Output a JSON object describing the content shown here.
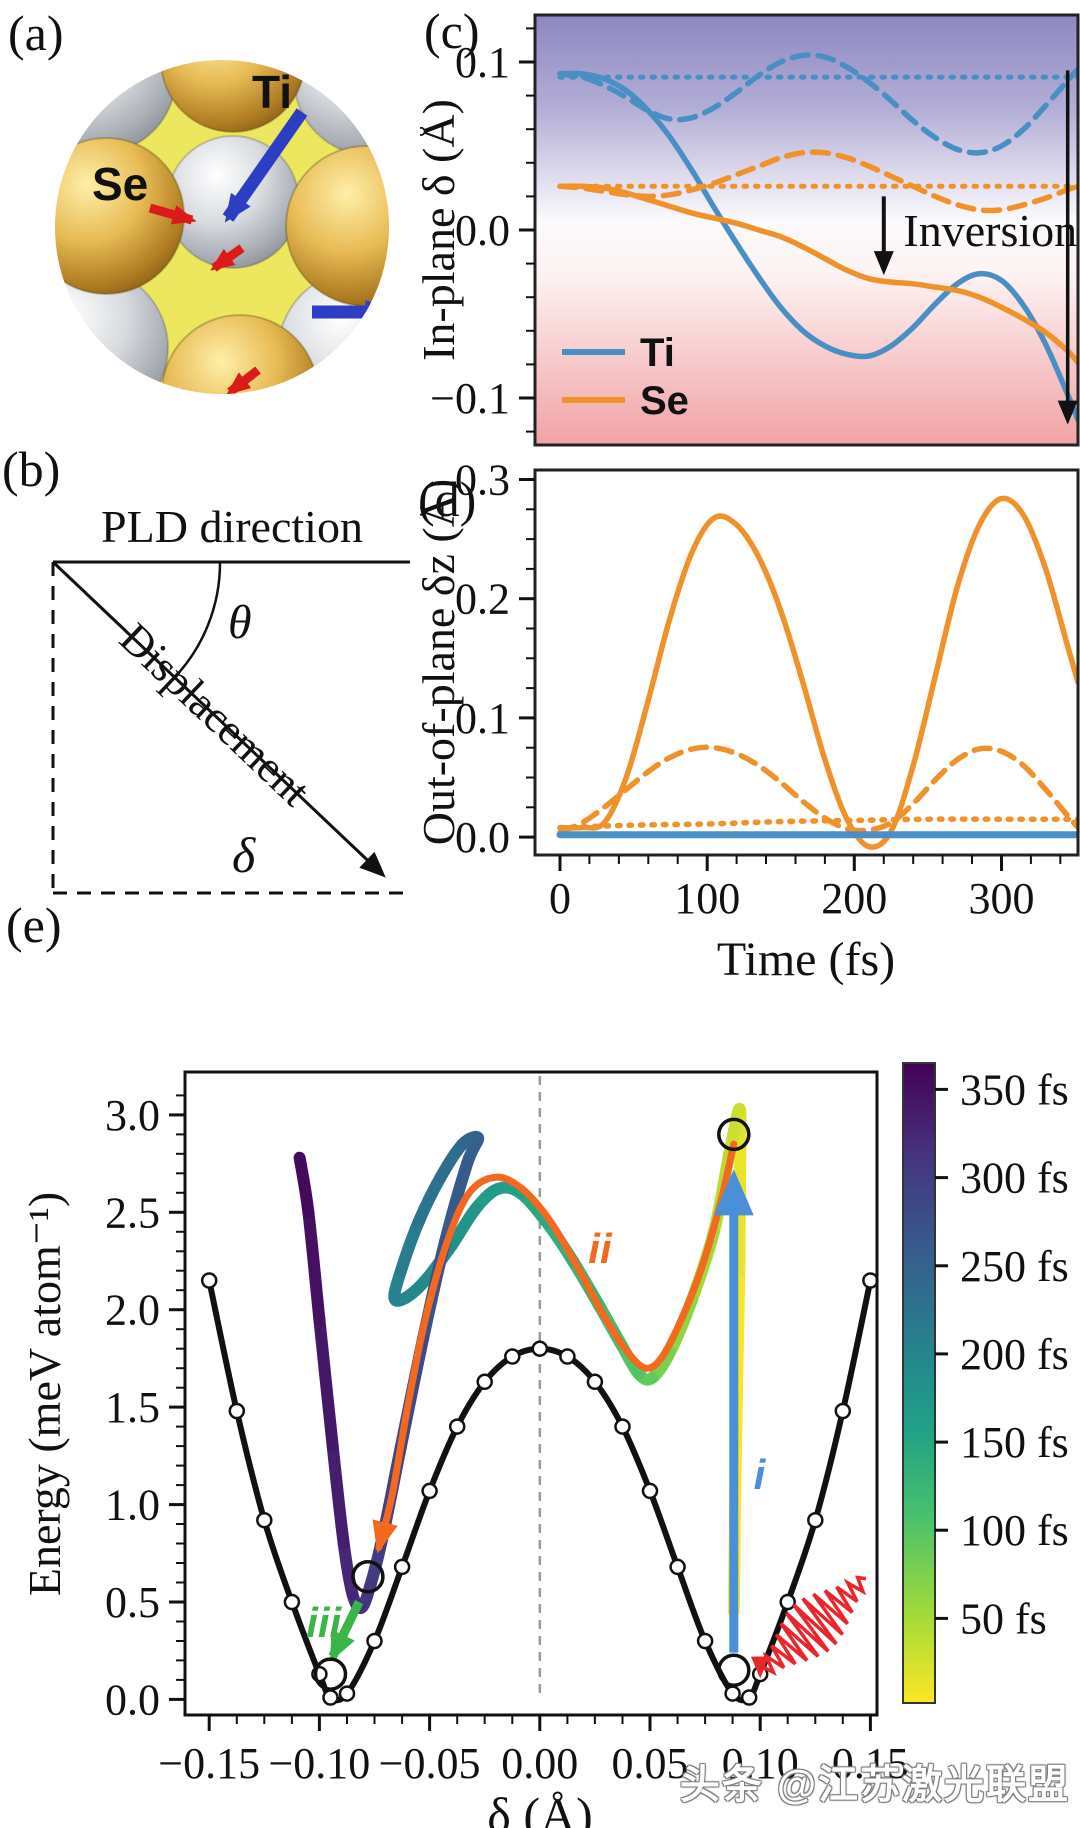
{
  "figure": {
    "panel_labels": {
      "a": "(a)",
      "b": "(b)",
      "c": "(c)",
      "d": "(d)",
      "e": "(e)"
    },
    "watermark": "头条 @江苏激光联盟"
  },
  "panel_a": {
    "atom_labels": {
      "ti": "Ti",
      "se": "Se"
    },
    "colors": {
      "se_sphere": "#c99b3f",
      "surface_sphere": "#b9bcc2",
      "background": "#ece75f",
      "displacement_arrow": "#dd1a1a",
      "direction_arrow": "#2c3fc4"
    }
  },
  "panel_b": {
    "top_label": "PLD direction",
    "angle_label": "θ",
    "vector_label": "Displacement",
    "delta_label": "δ"
  },
  "chart_data": [
    {
      "id": "c",
      "type": "line",
      "xlabel": "",
      "ylabel": "In-plane δ (Å)",
      "xlim": [
        -17,
        352
      ],
      "ylim": [
        -0.128,
        0.128
      ],
      "yticks": [
        0.1,
        0.0,
        -0.1
      ],
      "ytick_labels": [
        "0.1",
        "0.0",
        "−0.1"
      ],
      "background_gradient": [
        "#8d87c2",
        "#ffffff",
        "#f1a2a5"
      ],
      "legend": {
        "position": "lower-left",
        "entries": [
          {
            "label": "Ti",
            "color": "#4a8fc4"
          },
          {
            "label": "Se",
            "color": "#f0922b"
          }
        ]
      },
      "annotations": {
        "inversion_text": {
          "text": "Inversion",
          "t": 232,
          "v": 0.0
        },
        "inversion_arrow": {
          "t": 220,
          "from": 0.02,
          "to": -0.024
        },
        "full_arrow": {
          "t": 345,
          "from": 0.095,
          "to": -0.113
        }
      },
      "series": [
        {
          "name": "Ti-solid",
          "style": "solid",
          "color": "#4a8fc4",
          "x": [
            0,
            15,
            30,
            45,
            60,
            75,
            90,
            105,
            120,
            135,
            150,
            165,
            180,
            195,
            210,
            225,
            240,
            255,
            270,
            285,
            300,
            315,
            330,
            345,
            352
          ],
          "y": [
            0.093,
            0.093,
            0.09,
            0.083,
            0.071,
            0.055,
            0.035,
            0.013,
            -0.008,
            -0.028,
            -0.046,
            -0.06,
            -0.069,
            -0.074,
            -0.075,
            -0.069,
            -0.058,
            -0.044,
            -0.032,
            -0.026,
            -0.03,
            -0.045,
            -0.068,
            -0.098,
            -0.113
          ]
        },
        {
          "name": "Se-solid",
          "style": "solid",
          "color": "#f0922b",
          "x": [
            0,
            15,
            30,
            45,
            60,
            75,
            90,
            105,
            120,
            135,
            150,
            165,
            180,
            195,
            210,
            225,
            240,
            255,
            270,
            285,
            300,
            315,
            330,
            345,
            352
          ],
          "y": [
            0.026,
            0.026,
            0.025,
            0.022,
            0.018,
            0.014,
            0.01,
            0.007,
            0.004,
            0.0,
            -0.004,
            -0.01,
            -0.017,
            -0.024,
            -0.029,
            -0.031,
            -0.032,
            -0.034,
            -0.036,
            -0.04,
            -0.046,
            -0.053,
            -0.061,
            -0.072,
            -0.079
          ]
        },
        {
          "name": "Ti-dashed",
          "style": "dashed",
          "color": "#4a8fc4",
          "x": [
            0,
            15,
            30,
            45,
            60,
            75,
            90,
            105,
            120,
            135,
            150,
            165,
            180,
            195,
            210,
            225,
            240,
            255,
            270,
            285,
            300,
            315,
            330,
            345,
            352
          ],
          "y": [
            0.093,
            0.091,
            0.086,
            0.079,
            0.071,
            0.066,
            0.067,
            0.073,
            0.082,
            0.092,
            0.1,
            0.104,
            0.103,
            0.097,
            0.088,
            0.077,
            0.065,
            0.055,
            0.048,
            0.046,
            0.05,
            0.06,
            0.074,
            0.089,
            0.096
          ]
        },
        {
          "name": "Se-dashed",
          "style": "dashed",
          "color": "#f0922b",
          "x": [
            0,
            15,
            30,
            45,
            60,
            75,
            90,
            105,
            120,
            135,
            150,
            165,
            180,
            195,
            210,
            225,
            240,
            255,
            270,
            285,
            300,
            315,
            330,
            345,
            352
          ],
          "y": [
            0.026,
            0.025,
            0.023,
            0.021,
            0.02,
            0.021,
            0.024,
            0.028,
            0.033,
            0.038,
            0.043,
            0.046,
            0.046,
            0.043,
            0.038,
            0.032,
            0.026,
            0.02,
            0.015,
            0.012,
            0.012,
            0.015,
            0.019,
            0.024,
            0.026
          ]
        },
        {
          "name": "Ti-dotted",
          "style": "dotted",
          "color": "#4a8fc4",
          "x": [
            0,
            352
          ],
          "y": [
            0.091,
            0.091
          ]
        },
        {
          "name": "Se-dotted",
          "style": "dotted",
          "color": "#f0922b",
          "x": [
            0,
            352
          ],
          "y": [
            0.026,
            0.026
          ]
        }
      ]
    },
    {
      "id": "d",
      "type": "line",
      "xlabel": "Time (fs)",
      "ylabel": "Out-of-plane δz (Å)",
      "xlim": [
        -17,
        352
      ],
      "ylim": [
        -0.015,
        0.308
      ],
      "xticks": [
        0,
        100,
        200,
        300
      ],
      "xtick_labels": [
        "0",
        "100",
        "200",
        "300"
      ],
      "yticks": [
        0.0,
        0.1,
        0.2,
        0.3
      ],
      "ytick_labels": [
        "0.0",
        "0.1",
        "0.2",
        "0.3"
      ],
      "series": [
        {
          "name": "Se-solid",
          "style": "solid",
          "color": "#f0922b",
          "x": [
            0,
            15,
            30,
            45,
            60,
            75,
            90,
            105,
            120,
            135,
            150,
            165,
            180,
            195,
            210,
            225,
            240,
            255,
            270,
            285,
            300,
            315,
            330,
            345,
            352
          ],
          "y": [
            0.008,
            0.008,
            0.012,
            0.05,
            0.115,
            0.185,
            0.24,
            0.268,
            0.262,
            0.235,
            0.19,
            0.13,
            0.065,
            0.015,
            -0.008,
            0.005,
            0.06,
            0.135,
            0.21,
            0.262,
            0.284,
            0.27,
            0.225,
            0.16,
            0.13
          ]
        },
        {
          "name": "Se-dashed",
          "style": "dashed",
          "color": "#f0922b",
          "x": [
            0,
            15,
            30,
            45,
            60,
            75,
            90,
            105,
            120,
            135,
            150,
            165,
            180,
            195,
            210,
            225,
            240,
            255,
            270,
            285,
            300,
            315,
            330,
            345,
            352
          ],
          "y": [
            0.004,
            0.012,
            0.025,
            0.04,
            0.055,
            0.067,
            0.074,
            0.075,
            0.07,
            0.06,
            0.046,
            0.03,
            0.016,
            0.007,
            0.006,
            0.012,
            0.028,
            0.048,
            0.065,
            0.074,
            0.072,
            0.06,
            0.04,
            0.018,
            0.008
          ]
        },
        {
          "name": "Se-dotted",
          "style": "dotted",
          "color": "#f0922b",
          "x": [
            0,
            50,
            100,
            150,
            200,
            250,
            300,
            352
          ],
          "y": [
            0.008,
            0.01,
            0.011,
            0.013,
            0.014,
            0.015,
            0.015,
            0.015
          ]
        },
        {
          "name": "Ti-solid",
          "style": "solid",
          "color": "#4a8fc4",
          "x": [
            0,
            352
          ],
          "y": [
            0.002,
            0.002
          ]
        }
      ]
    },
    {
      "id": "e",
      "type": "line",
      "xlabel": "δ (Å)",
      "ylabel": "Energy (meV atom⁻¹)",
      "xlim": [
        -0.161,
        0.153
      ],
      "ylim": [
        -0.08,
        3.22
      ],
      "xticks": [
        -0.15,
        -0.1,
        -0.05,
        0.0,
        0.05,
        0.1,
        0.15
      ],
      "xtick_labels": [
        "−0.15",
        "−0.10",
        "−0.05",
        "0.00",
        "0.05",
        "0.10",
        "0.15"
      ],
      "yticks": [
        0.0,
        0.5,
        1.0,
        1.5,
        2.0,
        2.5,
        3.0
      ],
      "ytick_labels": [
        "0.0",
        "0.5",
        "1.0",
        "1.5",
        "2.0",
        "2.5",
        "3.0"
      ],
      "pes": {
        "name": "ground-state double-well PES",
        "color": "#111111",
        "marker": "open-circle",
        "delta": [
          -0.15,
          -0.1375,
          -0.125,
          -0.1125,
          -0.1,
          -0.095,
          -0.0875,
          -0.075,
          -0.0625,
          -0.05,
          -0.0375,
          -0.025,
          -0.0125,
          0,
          0.0125,
          0.025,
          0.0375,
          0.05,
          0.0625,
          0.075,
          0.0875,
          0.095,
          0.1,
          0.1125,
          0.125,
          0.1375,
          0.15
        ],
        "energy": [
          2.15,
          1.48,
          0.92,
          0.5,
          0.13,
          0.01,
          0.03,
          0.3,
          0.68,
          1.07,
          1.4,
          1.63,
          1.76,
          1.8,
          1.76,
          1.63,
          1.4,
          1.07,
          0.68,
          0.3,
          0.03,
          0.01,
          0.13,
          0.5,
          0.92,
          1.48,
          2.15
        ]
      },
      "trajectory": {
        "name": "photoexcited trajectory (time-colored)",
        "colormap": "viridis",
        "points": [
          [
            0.088,
            0.45,
            4
          ],
          [
            0.089,
            1.3,
            10
          ],
          [
            0.0905,
            2.2,
            17
          ],
          [
            0.091,
            2.85,
            23
          ],
          [
            0.0905,
            3.03,
            30
          ],
          [
            0.086,
            2.8,
            42
          ],
          [
            0.079,
            2.4,
            52
          ],
          [
            0.069,
            2.05,
            64
          ],
          [
            0.059,
            1.78,
            76
          ],
          [
            0.051,
            1.65,
            90
          ],
          [
            0.045,
            1.67,
            102
          ],
          [
            0.037,
            1.82,
            113
          ],
          [
            0.027,
            2.02,
            124
          ],
          [
            0.015,
            2.25,
            135
          ],
          [
            0.003,
            2.45,
            146
          ],
          [
            -0.009,
            2.6,
            156
          ],
          [
            -0.019,
            2.62,
            164
          ],
          [
            -0.029,
            2.52,
            174
          ],
          [
            -0.04,
            2.33,
            184
          ],
          [
            -0.052,
            2.15,
            192
          ],
          [
            -0.061,
            2.06,
            199
          ],
          [
            -0.066,
            2.06,
            204
          ],
          [
            -0.063,
            2.2,
            210
          ],
          [
            -0.055,
            2.45,
            220
          ],
          [
            -0.045,
            2.68,
            230
          ],
          [
            -0.035,
            2.85,
            240
          ],
          [
            -0.028,
            2.88,
            248
          ],
          [
            -0.033,
            2.75,
            257
          ],
          [
            -0.043,
            2.35,
            266
          ],
          [
            -0.053,
            1.85,
            275
          ],
          [
            -0.063,
            1.3,
            284
          ],
          [
            -0.071,
            0.85,
            293
          ],
          [
            -0.077,
            0.58,
            302
          ],
          [
            -0.081,
            0.47,
            310
          ],
          [
            -0.085,
            0.54,
            318
          ],
          [
            -0.089,
            0.8,
            326
          ],
          [
            -0.094,
            1.3,
            334
          ],
          [
            -0.1,
            1.95,
            342
          ],
          [
            -0.105,
            2.5,
            348
          ],
          [
            -0.109,
            2.78,
            354
          ]
        ]
      },
      "pathway_ii": {
        "color": "#f4681f",
        "points": [
          [
            0.088,
            2.85
          ],
          [
            0.082,
            2.55
          ],
          [
            0.073,
            2.2
          ],
          [
            0.063,
            1.92
          ],
          [
            0.055,
            1.75
          ],
          [
            0.048,
            1.7
          ],
          [
            0.04,
            1.78
          ],
          [
            0.03,
            1.95
          ],
          [
            0.018,
            2.2
          ],
          [
            0.005,
            2.45
          ],
          [
            -0.008,
            2.62
          ],
          [
            -0.02,
            2.68
          ],
          [
            -0.032,
            2.6
          ],
          [
            -0.042,
            2.35
          ],
          [
            -0.052,
            1.95
          ],
          [
            -0.06,
            1.5
          ],
          [
            -0.067,
            1.05
          ],
          [
            -0.073,
            0.78
          ]
        ]
      },
      "key_points": [
        [
          0.088,
          2.9
        ],
        [
          0.088,
          0.15
        ],
        [
          -0.078,
          0.63
        ],
        [
          -0.095,
          0.13
        ]
      ],
      "step_labels": [
        {
          "text": "i",
          "x": 0.097,
          "y": 1.08,
          "color": "#4a90d9"
        },
        {
          "text": "ii",
          "x": 0.022,
          "y": 2.24,
          "color": "#f4681f"
        },
        {
          "text": "iii",
          "x": -0.106,
          "y": 0.32,
          "color": "#3bb54a"
        }
      ],
      "arrows": [
        {
          "name": "pump-arrow-i",
          "color": "#4a90d9",
          "x": 0.088,
          "from_y": 0.24,
          "to_y": 2.72
        },
        {
          "name": "relax-arrow-iii",
          "color": "#3bb54a",
          "from": [
            -0.082,
            0.5
          ],
          "to": [
            -0.094,
            0.22
          ]
        },
        {
          "name": "laser-pulse",
          "color": "#e8262b",
          "from": [
            0.148,
            0.62
          ],
          "to": [
            0.1,
            0.13
          ]
        }
      ],
      "colorbar": {
        "colormap": "viridis",
        "top_value": 365,
        "bottom_value": 2,
        "tick_values": [
          350,
          300,
          250,
          200,
          150,
          100,
          50
        ],
        "tick_labels": [
          "350 fs",
          "300 fs",
          "250 fs",
          "200 fs",
          "150 fs",
          "100 fs",
          "50 fs"
        ]
      }
    }
  ]
}
